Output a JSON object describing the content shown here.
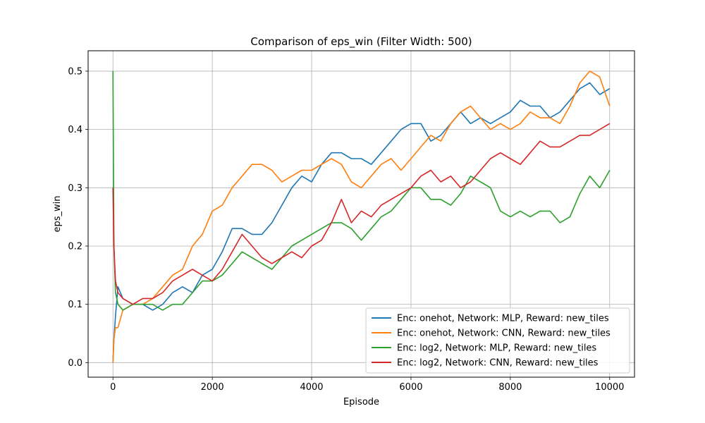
{
  "chart_data": {
    "type": "line",
    "title": "Comparison of eps_win (Filter Width: 500)",
    "xlabel": "Episode",
    "ylabel": "eps_win",
    "xlim": [
      -500,
      10500
    ],
    "ylim": [
      -0.025,
      0.535
    ],
    "xticks": [
      0,
      2000,
      4000,
      6000,
      8000,
      10000
    ],
    "yticks": [
      0.0,
      0.1,
      0.2,
      0.3,
      0.4,
      0.5
    ],
    "xtick_labels": [
      "0",
      "2000",
      "4000",
      "6000",
      "8000",
      "10000"
    ],
    "ytick_labels": [
      "0.0",
      "0.1",
      "0.2",
      "0.3",
      "0.4",
      "0.5"
    ],
    "grid": true,
    "legend_position": "lower-right",
    "series": [
      {
        "name": "Enc: onehot, Network: MLP, Reward: new_tiles",
        "color": "#1f77b4",
        "x": [
          0,
          20,
          50,
          100,
          200,
          400,
          600,
          800,
          1000,
          1200,
          1400,
          1600,
          1800,
          2000,
          2200,
          2400,
          2600,
          2800,
          3000,
          3200,
          3400,
          3600,
          3800,
          4000,
          4200,
          4400,
          4600,
          4800,
          5000,
          5200,
          5400,
          5600,
          5800,
          6000,
          6200,
          6400,
          6600,
          6800,
          7000,
          7200,
          7400,
          7600,
          7800,
          8000,
          8200,
          8400,
          8600,
          8800,
          9000,
          9200,
          9400,
          9600,
          9800,
          10000
        ],
        "values": [
          0.0,
          0.04,
          0.08,
          0.13,
          0.11,
          0.1,
          0.1,
          0.09,
          0.1,
          0.12,
          0.13,
          0.12,
          0.15,
          0.16,
          0.19,
          0.23,
          0.23,
          0.22,
          0.22,
          0.24,
          0.27,
          0.3,
          0.32,
          0.31,
          0.34,
          0.36,
          0.36,
          0.35,
          0.35,
          0.34,
          0.36,
          0.38,
          0.4,
          0.41,
          0.41,
          0.38,
          0.39,
          0.41,
          0.43,
          0.41,
          0.42,
          0.41,
          0.42,
          0.43,
          0.45,
          0.44,
          0.44,
          0.42,
          0.43,
          0.45,
          0.47,
          0.48,
          0.46,
          0.47
        ]
      },
      {
        "name": "Enc: onehot, Network: CNN, Reward: new_tiles",
        "color": "#ff7f0e",
        "x": [
          0,
          20,
          50,
          100,
          200,
          400,
          600,
          800,
          1000,
          1200,
          1400,
          1600,
          1800,
          2000,
          2200,
          2400,
          2600,
          2800,
          3000,
          3200,
          3400,
          3600,
          3800,
          4000,
          4200,
          4400,
          4600,
          4800,
          5000,
          5200,
          5400,
          5600,
          5800,
          6000,
          6200,
          6400,
          6600,
          6800,
          7000,
          7200,
          7400,
          7600,
          7800,
          8000,
          8200,
          8400,
          8600,
          8800,
          9000,
          9200,
          9400,
          9600,
          9800,
          10000
        ],
        "values": [
          0.0,
          0.04,
          0.06,
          0.06,
          0.09,
          0.1,
          0.1,
          0.11,
          0.13,
          0.15,
          0.16,
          0.2,
          0.22,
          0.26,
          0.27,
          0.3,
          0.32,
          0.34,
          0.34,
          0.33,
          0.31,
          0.32,
          0.33,
          0.33,
          0.34,
          0.35,
          0.34,
          0.31,
          0.3,
          0.32,
          0.34,
          0.35,
          0.33,
          0.35,
          0.37,
          0.39,
          0.38,
          0.41,
          0.43,
          0.44,
          0.42,
          0.4,
          0.41,
          0.4,
          0.41,
          0.43,
          0.42,
          0.42,
          0.41,
          0.44,
          0.48,
          0.5,
          0.49,
          0.44
        ]
      },
      {
        "name": "Enc: log2, Network: MLP, Reward: new_tiles",
        "color": "#2ca02c",
        "x": [
          0,
          20,
          50,
          100,
          200,
          400,
          600,
          800,
          1000,
          1200,
          1400,
          1600,
          1800,
          2000,
          2200,
          2400,
          2600,
          2800,
          3000,
          3200,
          3400,
          3600,
          3800,
          4000,
          4200,
          4400,
          4600,
          4800,
          5000,
          5200,
          5400,
          5600,
          5800,
          6000,
          6200,
          6400,
          6600,
          6800,
          7000,
          7200,
          7400,
          7600,
          7800,
          8000,
          8200,
          8400,
          8600,
          8800,
          9000,
          9200,
          9400,
          9600,
          9800,
          10000
        ],
        "values": [
          0.5,
          0.2,
          0.12,
          0.1,
          0.09,
          0.1,
          0.1,
          0.1,
          0.09,
          0.1,
          0.1,
          0.12,
          0.14,
          0.14,
          0.15,
          0.17,
          0.19,
          0.18,
          0.17,
          0.16,
          0.18,
          0.2,
          0.21,
          0.22,
          0.23,
          0.24,
          0.24,
          0.23,
          0.21,
          0.23,
          0.25,
          0.26,
          0.28,
          0.3,
          0.3,
          0.28,
          0.28,
          0.27,
          0.29,
          0.32,
          0.31,
          0.3,
          0.26,
          0.25,
          0.26,
          0.25,
          0.26,
          0.26,
          0.24,
          0.25,
          0.29,
          0.32,
          0.3,
          0.33
        ]
      },
      {
        "name": "Enc: log2, Network: CNN, Reward: new_tiles",
        "color": "#d62728",
        "x": [
          0,
          20,
          50,
          100,
          200,
          400,
          600,
          800,
          1000,
          1200,
          1400,
          1600,
          1800,
          2000,
          2200,
          2400,
          2600,
          2800,
          3000,
          3200,
          3400,
          3600,
          3800,
          4000,
          4200,
          4400,
          4600,
          4800,
          5000,
          5200,
          5400,
          5600,
          5800,
          6000,
          6200,
          6400,
          6600,
          6800,
          7000,
          7200,
          7400,
          7600,
          7800,
          8000,
          8200,
          8400,
          8600,
          8800,
          9000,
          9200,
          9400,
          9600,
          9800,
          10000
        ],
        "values": [
          0.3,
          0.2,
          0.14,
          0.12,
          0.11,
          0.1,
          0.11,
          0.11,
          0.12,
          0.14,
          0.15,
          0.16,
          0.15,
          0.14,
          0.16,
          0.19,
          0.22,
          0.2,
          0.18,
          0.17,
          0.18,
          0.19,
          0.18,
          0.2,
          0.21,
          0.24,
          0.28,
          0.24,
          0.26,
          0.25,
          0.27,
          0.28,
          0.29,
          0.3,
          0.32,
          0.33,
          0.31,
          0.32,
          0.3,
          0.31,
          0.33,
          0.35,
          0.36,
          0.35,
          0.34,
          0.36,
          0.38,
          0.37,
          0.37,
          0.38,
          0.39,
          0.39,
          0.4,
          0.41
        ]
      }
    ]
  }
}
